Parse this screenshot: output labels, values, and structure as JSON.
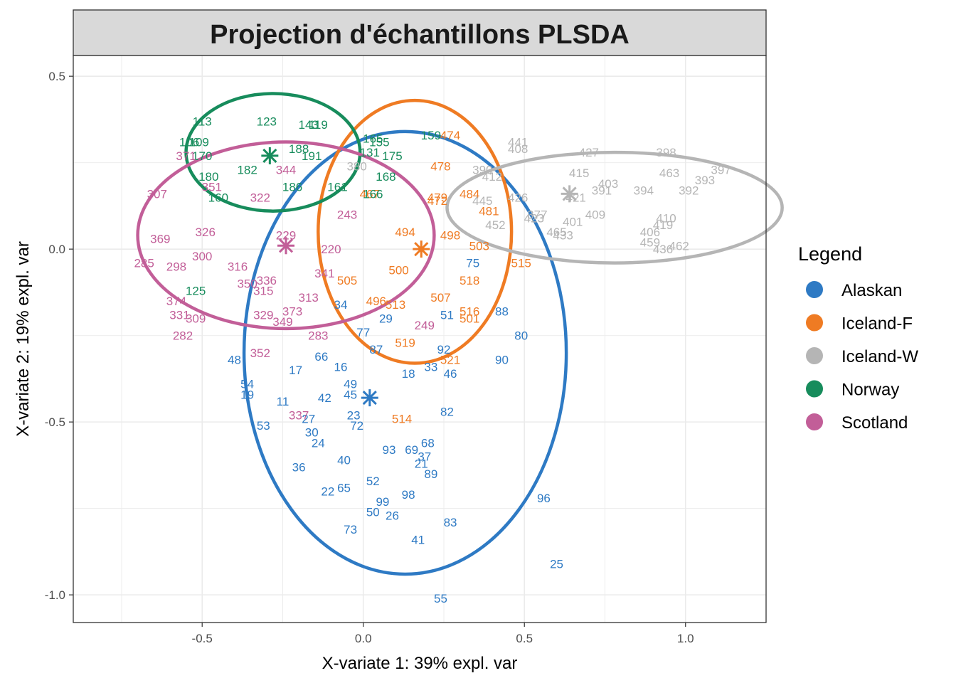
{
  "chart_data": {
    "type": "scatter",
    "title": "Projection d'échantillons PLSDA",
    "xlabel": "X-variate 1: 39% expl. var",
    "ylabel": "X-variate 2: 19% expl. var",
    "xlim": [
      -0.9,
      1.25
    ],
    "ylim": [
      -1.08,
      0.56
    ],
    "x_ticks": [
      -0.5,
      0.0,
      0.5,
      1.0
    ],
    "x_tick_labels": [
      "-0.5",
      "0.0",
      "0.5",
      "1.0"
    ],
    "y_ticks": [
      0.5,
      0.0,
      -0.5,
      -1.0
    ],
    "y_tick_labels": [
      "0.5",
      "0.0",
      "-0.5",
      "-1.0"
    ],
    "grid": true,
    "legend": {
      "title": "Legend",
      "position": "right"
    },
    "series": [
      {
        "name": "Alaskan",
        "color": "#2e7ac4",
        "centroid": [
          0.02,
          -0.43
        ],
        "ellipse": {
          "center": [
            0.13,
            -0.3
          ],
          "rx": 0.5,
          "ry": 0.64
        },
        "points": [
          {
            "label": "25",
            "x": 0.6,
            "y": -0.91
          },
          {
            "label": "55",
            "x": 0.24,
            "y": -1.01
          },
          {
            "label": "41",
            "x": 0.17,
            "y": -0.84
          },
          {
            "label": "83",
            "x": 0.27,
            "y": -0.79
          },
          {
            "label": "73",
            "x": -0.04,
            "y": -0.81
          },
          {
            "label": "96",
            "x": 0.56,
            "y": -0.72
          },
          {
            "label": "50",
            "x": 0.03,
            "y": -0.76
          },
          {
            "label": "26",
            "x": 0.09,
            "y": -0.77
          },
          {
            "label": "99",
            "x": 0.06,
            "y": -0.73
          },
          {
            "label": "98",
            "x": 0.14,
            "y": -0.71
          },
          {
            "label": "22",
            "x": -0.11,
            "y": -0.7
          },
          {
            "label": "65",
            "x": -0.06,
            "y": -0.69
          },
          {
            "label": "52",
            "x": 0.03,
            "y": -0.67
          },
          {
            "label": "89",
            "x": 0.21,
            "y": -0.65
          },
          {
            "label": "21",
            "x": 0.18,
            "y": -0.62
          },
          {
            "label": "37",
            "x": 0.19,
            "y": -0.6
          },
          {
            "label": "69",
            "x": 0.15,
            "y": -0.58
          },
          {
            "label": "93",
            "x": 0.08,
            "y": -0.58
          },
          {
            "label": "68",
            "x": 0.2,
            "y": -0.56
          },
          {
            "label": "40",
            "x": -0.06,
            "y": -0.61
          },
          {
            "label": "36",
            "x": -0.2,
            "y": -0.63
          },
          {
            "label": "24",
            "x": -0.14,
            "y": -0.56
          },
          {
            "label": "30",
            "x": -0.16,
            "y": -0.53
          },
          {
            "label": "53",
            "x": -0.31,
            "y": -0.51
          },
          {
            "label": "27",
            "x": -0.17,
            "y": -0.49
          },
          {
            "label": "72",
            "x": -0.02,
            "y": -0.51
          },
          {
            "label": "23",
            "x": -0.03,
            "y": -0.48
          },
          {
            "label": "82",
            "x": 0.26,
            "y": -0.47
          },
          {
            "label": "42",
            "x": -0.12,
            "y": -0.43
          },
          {
            "label": "11",
            "x": -0.25,
            "y": -0.44
          },
          {
            "label": "19",
            "x": -0.36,
            "y": -0.42
          },
          {
            "label": "54",
            "x": -0.36,
            "y": -0.39
          },
          {
            "label": "45",
            "x": -0.04,
            "y": -0.42
          },
          {
            "label": "49",
            "x": -0.04,
            "y": -0.39
          },
          {
            "label": "16",
            "x": -0.07,
            "y": -0.34
          },
          {
            "label": "17",
            "x": -0.21,
            "y": -0.35
          },
          {
            "label": "46",
            "x": 0.27,
            "y": -0.36
          },
          {
            "label": "33",
            "x": 0.21,
            "y": -0.34
          },
          {
            "label": "90",
            "x": 0.43,
            "y": -0.32
          },
          {
            "label": "92",
            "x": 0.25,
            "y": -0.29
          },
          {
            "label": "80",
            "x": 0.49,
            "y": -0.25
          },
          {
            "label": "88",
            "x": 0.43,
            "y": -0.18
          },
          {
            "label": "48",
            "x": -0.4,
            "y": -0.32
          },
          {
            "label": "66",
            "x": -0.13,
            "y": -0.31
          },
          {
            "label": "87",
            "x": 0.04,
            "y": -0.29
          },
          {
            "label": "77",
            "x": 0.0,
            "y": -0.24
          },
          {
            "label": "29",
            "x": 0.07,
            "y": -0.2
          },
          {
            "label": "34",
            "x": -0.07,
            "y": -0.16
          },
          {
            "label": "51",
            "x": 0.26,
            "y": -0.19
          },
          {
            "label": "75",
            "x": 0.34,
            "y": -0.04
          },
          {
            "label": "18",
            "x": 0.14,
            "y": -0.36
          }
        ]
      },
      {
        "name": "Iceland-F",
        "color": "#ef7b23",
        "centroid": [
          0.18,
          0.0
        ],
        "ellipse": {
          "center": [
            0.16,
            0.05
          ],
          "rx": 0.3,
          "ry": 0.38
        },
        "points": [
          {
            "label": "474",
            "x": 0.27,
            "y": 0.33
          },
          {
            "label": "478",
            "x": 0.24,
            "y": 0.24
          },
          {
            "label": "472",
            "x": 0.23,
            "y": 0.14
          },
          {
            "label": "479",
            "x": 0.23,
            "y": 0.15
          },
          {
            "label": "484",
            "x": 0.33,
            "y": 0.16
          },
          {
            "label": "467",
            "x": 0.02,
            "y": 0.16
          },
          {
            "label": "481",
            "x": 0.39,
            "y": 0.11
          },
          {
            "label": "498",
            "x": 0.27,
            "y": 0.04
          },
          {
            "label": "503",
            "x": 0.36,
            "y": 0.01
          },
          {
            "label": "515",
            "x": 0.49,
            "y": -0.04
          },
          {
            "label": "518",
            "x": 0.33,
            "y": -0.09
          },
          {
            "label": "505",
            "x": -0.05,
            "y": -0.09
          },
          {
            "label": "496",
            "x": 0.04,
            "y": -0.15
          },
          {
            "label": "513",
            "x": 0.1,
            "y": -0.16
          },
          {
            "label": "507",
            "x": 0.24,
            "y": -0.14
          },
          {
            "label": "516",
            "x": 0.33,
            "y": -0.18
          },
          {
            "label": "501",
            "x": 0.33,
            "y": -0.2
          },
          {
            "label": "519",
            "x": 0.13,
            "y": -0.27
          },
          {
            "label": "521",
            "x": 0.27,
            "y": -0.32
          },
          {
            "label": "514",
            "x": 0.12,
            "y": -0.49
          },
          {
            "label": "500",
            "x": 0.11,
            "y": -0.06
          },
          {
            "label": "494",
            "x": 0.13,
            "y": 0.05
          }
        ]
      },
      {
        "name": "Iceland-W",
        "color": "#b5b5b5",
        "centroid": [
          0.64,
          0.16
        ],
        "ellipse": {
          "center": [
            0.78,
            0.12
          ],
          "rx": 0.52,
          "ry": 0.16
        },
        "points": [
          {
            "label": "427",
            "x": 0.7,
            "y": 0.28
          },
          {
            "label": "398",
            "x": 0.94,
            "y": 0.28
          },
          {
            "label": "397",
            "x": 1.11,
            "y": 0.23
          },
          {
            "label": "393",
            "x": 1.06,
            "y": 0.2
          },
          {
            "label": "392",
            "x": 1.01,
            "y": 0.17
          },
          {
            "label": "463",
            "x": 0.95,
            "y": 0.22
          },
          {
            "label": "441",
            "x": 0.48,
            "y": 0.31
          },
          {
            "label": "408",
            "x": 0.48,
            "y": 0.29
          },
          {
            "label": "390",
            "x": 0.37,
            "y": 0.23
          },
          {
            "label": "403",
            "x": 0.76,
            "y": 0.19
          },
          {
            "label": "394",
            "x": 0.87,
            "y": 0.17
          },
          {
            "label": "415",
            "x": 0.67,
            "y": 0.22
          },
          {
            "label": "410",
            "x": 0.94,
            "y": 0.09
          },
          {
            "label": "419",
            "x": 0.93,
            "y": 0.07
          },
          {
            "label": "406",
            "x": 0.89,
            "y": 0.05
          },
          {
            "label": "459",
            "x": 0.89,
            "y": 0.02
          },
          {
            "label": "436",
            "x": 0.93,
            "y": 0.0
          },
          {
            "label": "462",
            "x": 0.98,
            "y": 0.01
          },
          {
            "label": "401",
            "x": 0.65,
            "y": 0.08
          },
          {
            "label": "409",
            "x": 0.72,
            "y": 0.1
          },
          {
            "label": "433",
            "x": 0.62,
            "y": 0.04
          },
          {
            "label": "465",
            "x": 0.6,
            "y": 0.05
          },
          {
            "label": "452",
            "x": 0.41,
            "y": 0.07
          },
          {
            "label": "423",
            "x": 0.53,
            "y": 0.09
          },
          {
            "label": "377",
            "x": 0.54,
            "y": 0.1
          },
          {
            "label": "391",
            "x": 0.74,
            "y": 0.17
          },
          {
            "label": "380",
            "x": -0.02,
            "y": 0.24
          },
          {
            "label": "412",
            "x": 0.4,
            "y": 0.21
          },
          {
            "label": "445",
            "x": 0.37,
            "y": 0.14
          },
          {
            "label": "426",
            "x": 0.48,
            "y": 0.15
          },
          {
            "label": "421",
            "x": 0.66,
            "y": 0.15
          }
        ]
      },
      {
        "name": "Norway",
        "color": "#178c5c",
        "centroid": [
          -0.29,
          0.27
        ],
        "ellipse": {
          "center": [
            -0.28,
            0.28
          ],
          "rx": 0.27,
          "ry": 0.17
        },
        "points": [
          {
            "label": "113",
            "x": -0.5,
            "y": 0.37
          },
          {
            "label": "123",
            "x": -0.3,
            "y": 0.37
          },
          {
            "label": "119",
            "x": -0.14,
            "y": 0.36
          },
          {
            "label": "143",
            "x": -0.17,
            "y": 0.36
          },
          {
            "label": "159",
            "x": 0.21,
            "y": 0.33
          },
          {
            "label": "165",
            "x": 0.03,
            "y": 0.32
          },
          {
            "label": "155",
            "x": 0.05,
            "y": 0.31
          },
          {
            "label": "106",
            "x": -0.54,
            "y": 0.31
          },
          {
            "label": "109",
            "x": -0.51,
            "y": 0.31
          },
          {
            "label": "131",
            "x": 0.02,
            "y": 0.28
          },
          {
            "label": "175",
            "x": 0.09,
            "y": 0.27
          },
          {
            "label": "191",
            "x": -0.16,
            "y": 0.27
          },
          {
            "label": "170",
            "x": -0.5,
            "y": 0.27
          },
          {
            "label": "186",
            "x": -0.22,
            "y": 0.18
          },
          {
            "label": "180",
            "x": -0.48,
            "y": 0.21
          },
          {
            "label": "161",
            "x": -0.08,
            "y": 0.18
          },
          {
            "label": "166",
            "x": 0.03,
            "y": 0.16
          },
          {
            "label": "160",
            "x": -0.45,
            "y": 0.15
          },
          {
            "label": "168",
            "x": 0.07,
            "y": 0.21
          },
          {
            "label": "125",
            "x": -0.52,
            "y": -0.12
          },
          {
            "label": "188",
            "x": -0.2,
            "y": 0.29
          },
          {
            "label": "182",
            "x": -0.36,
            "y": 0.23
          }
        ]
      },
      {
        "name": "Scotland",
        "color": "#c25e98",
        "centroid": [
          -0.24,
          0.01
        ],
        "ellipse": {
          "center": [
            -0.24,
            0.04
          ],
          "rx": 0.46,
          "ry": 0.27
        },
        "points": [
          {
            "label": "371",
            "x": -0.55,
            "y": 0.27
          },
          {
            "label": "307",
            "x": -0.64,
            "y": 0.16
          },
          {
            "label": "369",
            "x": -0.63,
            "y": 0.03
          },
          {
            "label": "285",
            "x": -0.68,
            "y": -0.04
          },
          {
            "label": "298",
            "x": -0.58,
            "y": -0.05
          },
          {
            "label": "300",
            "x": -0.5,
            "y": -0.02
          },
          {
            "label": "316",
            "x": -0.39,
            "y": -0.05
          },
          {
            "label": "336",
            "x": -0.3,
            "y": -0.09
          },
          {
            "label": "350",
            "x": -0.36,
            "y": -0.1
          },
          {
            "label": "315",
            "x": -0.31,
            "y": -0.12
          },
          {
            "label": "374",
            "x": -0.58,
            "y": -0.15
          },
          {
            "label": "331",
            "x": -0.57,
            "y": -0.19
          },
          {
            "label": "309",
            "x": -0.52,
            "y": -0.2
          },
          {
            "label": "373",
            "x": -0.22,
            "y": -0.18
          },
          {
            "label": "329",
            "x": -0.31,
            "y": -0.19
          },
          {
            "label": "349",
            "x": -0.25,
            "y": -0.21
          },
          {
            "label": "282",
            "x": -0.56,
            "y": -0.25
          },
          {
            "label": "313",
            "x": -0.17,
            "y": -0.14
          },
          {
            "label": "283",
            "x": -0.14,
            "y": -0.25
          },
          {
            "label": "352",
            "x": -0.32,
            "y": -0.3
          },
          {
            "label": "337",
            "x": -0.2,
            "y": -0.48
          },
          {
            "label": "249",
            "x": 0.19,
            "y": -0.22
          },
          {
            "label": "220",
            "x": -0.1,
            "y": 0.0
          },
          {
            "label": "243",
            "x": -0.05,
            "y": 0.1
          },
          {
            "label": "229",
            "x": -0.24,
            "y": 0.04
          },
          {
            "label": "322",
            "x": -0.32,
            "y": 0.15
          },
          {
            "label": "326",
            "x": -0.49,
            "y": 0.05
          },
          {
            "label": "341",
            "x": -0.12,
            "y": -0.07
          },
          {
            "label": "344",
            "x": -0.24,
            "y": 0.23
          },
          {
            "label": "351",
            "x": -0.47,
            "y": 0.18
          }
        ]
      }
    ]
  }
}
